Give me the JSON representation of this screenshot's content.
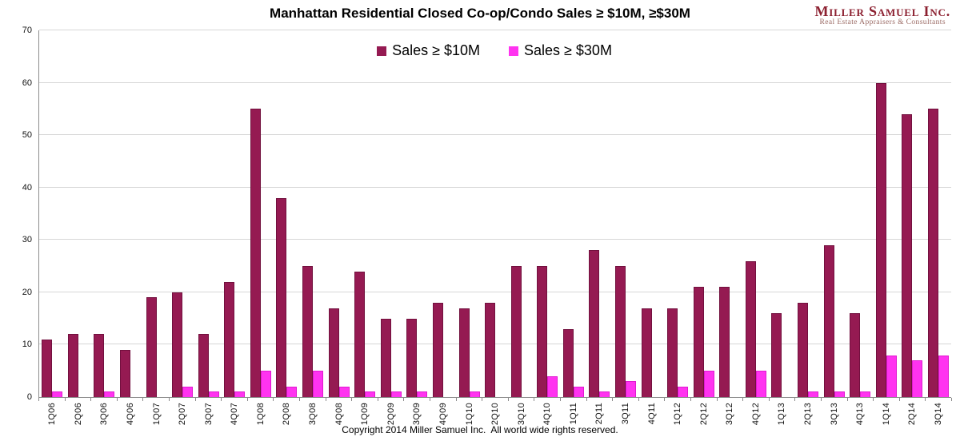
{
  "header": {
    "title": "Manhattan Residential Closed Co-op/Condo Sales ≥ $10M, ≥$30M",
    "logo": {
      "name": "Miller Samuel Inc.",
      "tagline": "Real Estate Appraisers & Consultants",
      "color": "#8C2030"
    }
  },
  "footer": {
    "copyright": "Copyright 2014 Miller Samuel Inc.  All world wide rights reserved."
  },
  "colors": {
    "series_10m": "#951A52",
    "series_30m": "#FF33F0",
    "gridline": "#D6D6D6",
    "axis": "#8C8C8C"
  },
  "chart_data": {
    "type": "bar",
    "title": "Manhattan Residential Closed Co-op/Condo Sales ≥ $10M, ≥$30M",
    "xlabel": "",
    "ylabel": "",
    "ylim": [
      0,
      70
    ],
    "yticks": [
      0,
      10,
      20,
      30,
      40,
      50,
      60,
      70
    ],
    "grid": true,
    "legend_position": "top-center",
    "categories": [
      "1Q06",
      "2Q06",
      "3Q06",
      "4Q06",
      "1Q07",
      "2Q07",
      "3Q07",
      "4Q07",
      "1Q08",
      "2Q08",
      "3Q08",
      "4Q08",
      "1Q09",
      "2Q09",
      "3Q09",
      "4Q09",
      "1Q10",
      "2Q10",
      "3Q10",
      "4Q10",
      "1Q11",
      "2Q11",
      "3Q11",
      "4Q11",
      "1Q12",
      "2Q12",
      "3Q12",
      "4Q12",
      "1Q13",
      "2Q13",
      "3Q13",
      "4Q13",
      "1Q14",
      "2Q14",
      "3Q14"
    ],
    "series": [
      {
        "name": "Sales ≥ $10M",
        "color": "#951A52",
        "values": [
          11,
          12,
          12,
          9,
          19,
          20,
          12,
          22,
          55,
          38,
          25,
          17,
          24,
          15,
          15,
          18,
          17,
          18,
          25,
          25,
          13,
          28,
          25,
          17,
          17,
          21,
          21,
          26,
          16,
          18,
          29,
          16,
          60,
          54,
          55
        ]
      },
      {
        "name": "Sales ≥ $30M",
        "color": "#FF33F0",
        "values": [
          1,
          0,
          1,
          0,
          0,
          2,
          1,
          1,
          5,
          2,
          5,
          2,
          1,
          1,
          1,
          0,
          1,
          0,
          0,
          4,
          2,
          1,
          3,
          0,
          2,
          5,
          0,
          5,
          0,
          1,
          1,
          1,
          8,
          7,
          8
        ]
      }
    ]
  }
}
